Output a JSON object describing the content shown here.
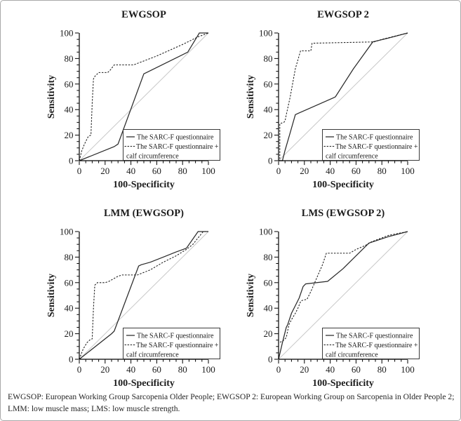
{
  "figure": {
    "caption": "EWGSOP: European Working Group Sarcopenia Older People; EWGSOP 2: European Working Group on Sarcopenia in Older People 2; LMM: low muscle mass; LMS: low muscle strength."
  },
  "legend": {
    "solid_label": "The SARC-F questionnaire",
    "dashed_label_line1": "The SARC-F questionnaire +",
    "dashed_label_line2": "calf circumference"
  },
  "colors": {
    "solid_curve": "#2a2a2a",
    "dashed_curve": "#1c1c1c",
    "reference_line": "#c8c8c8",
    "axis": "#000000",
    "text": "#1b1b1b",
    "legend_border": "#3a3a3a",
    "frame_border": "#a9a9a9",
    "background": "#ffffff"
  },
  "chart_data": [
    {
      "type": "line",
      "title": "EWGSOP",
      "xlabel": "100-Specificity",
      "ylabel": "Sensitivity",
      "xlim": [
        0,
        100
      ],
      "ylim": [
        0,
        100
      ],
      "xticks": [
        0,
        20,
        40,
        60,
        80,
        100
      ],
      "yticks": [
        0,
        20,
        40,
        60,
        80,
        100
      ],
      "minor_tick_step": 5,
      "reference_line": "diagonal",
      "legend_position": "lower-right",
      "series": [
        {
          "name": "The SARC-F questionnaire",
          "style": "solid",
          "points": [
            [
              0,
              0
            ],
            [
              27,
              11
            ],
            [
              30,
              13
            ],
            [
              50,
              68
            ],
            [
              52,
              69
            ],
            [
              84,
              85
            ],
            [
              93,
              100
            ],
            [
              100,
              100
            ]
          ]
        },
        {
          "name": "The SARC-F questionnaire + calf circumference",
          "style": "dashed",
          "points": [
            [
              0,
              0
            ],
            [
              2,
              8
            ],
            [
              4,
              13
            ],
            [
              6,
              17
            ],
            [
              7,
              19
            ],
            [
              9,
              20
            ],
            [
              10,
              45
            ],
            [
              11,
              64
            ],
            [
              12,
              66
            ],
            [
              14,
              68
            ],
            [
              15,
              69
            ],
            [
              22,
              69
            ],
            [
              24,
              71
            ],
            [
              27,
              75
            ],
            [
              42,
              75
            ],
            [
              60,
              82
            ],
            [
              80,
              91
            ],
            [
              92,
              97
            ],
            [
              100,
              100
            ]
          ]
        }
      ]
    },
    {
      "type": "line",
      "title": "EWGSOP 2",
      "xlabel": "100-Specificity",
      "ylabel": "Sensitivity",
      "xlim": [
        0,
        100
      ],
      "ylim": [
        0,
        100
      ],
      "xticks": [
        0,
        20,
        40,
        60,
        80,
        100
      ],
      "yticks": [
        0,
        20,
        40,
        60,
        80,
        100
      ],
      "minor_tick_step": 5,
      "reference_line": "diagonal",
      "legend_position": "lower-right",
      "series": [
        {
          "name": "The SARC-F questionnaire",
          "style": "solid",
          "points": [
            [
              0,
              0
            ],
            [
              3,
              0
            ],
            [
              5,
              8
            ],
            [
              9,
              22
            ],
            [
              13,
              36
            ],
            [
              15,
              37
            ],
            [
              42,
              49
            ],
            [
              44,
              50
            ],
            [
              58,
              72
            ],
            [
              73,
              93
            ],
            [
              85,
              96
            ],
            [
              100,
              100
            ]
          ]
        },
        {
          "name": "The SARC-F questionnaire + calf circumference",
          "style": "dashed",
          "points": [
            [
              0,
              0
            ],
            [
              1,
              0
            ],
            [
              1,
              29
            ],
            [
              4,
              30
            ],
            [
              5,
              31
            ],
            [
              6,
              36
            ],
            [
              9,
              50
            ],
            [
              13,
              72
            ],
            [
              17,
              86
            ],
            [
              25,
              86
            ],
            [
              26,
              92
            ],
            [
              74,
              93
            ],
            [
              80,
              95
            ],
            [
              100,
              100
            ]
          ]
        }
      ]
    },
    {
      "type": "line",
      "title": "LMM (EWGSOP)",
      "xlabel": "100-Specificity",
      "ylabel": "Sensitivity",
      "xlim": [
        0,
        100
      ],
      "ylim": [
        0,
        100
      ],
      "xticks": [
        0,
        20,
        40,
        60,
        80,
        100
      ],
      "yticks": [
        0,
        20,
        40,
        60,
        80,
        100
      ],
      "minor_tick_step": 5,
      "reference_line": "diagonal",
      "legend_position": "lower-right",
      "series": [
        {
          "name": "The SARC-F questionnaire",
          "style": "solid",
          "points": [
            [
              0,
              0
            ],
            [
              25,
              20
            ],
            [
              27,
              22
            ],
            [
              46,
              73
            ],
            [
              48,
              74
            ],
            [
              55,
              76
            ],
            [
              65,
              80
            ],
            [
              75,
              84
            ],
            [
              83,
              87
            ],
            [
              92,
              100
            ],
            [
              100,
              100
            ]
          ]
        },
        {
          "name": "The SARC-F questionnaire + calf circumference",
          "style": "dashed",
          "points": [
            [
              0,
              0
            ],
            [
              3,
              8
            ],
            [
              6,
              13
            ],
            [
              8,
              15
            ],
            [
              10,
              16
            ],
            [
              11,
              40
            ],
            [
              12,
              58
            ],
            [
              14,
              60
            ],
            [
              20,
              60
            ],
            [
              23,
              61
            ],
            [
              30,
              65
            ],
            [
              33,
              66
            ],
            [
              45,
              66
            ],
            [
              55,
              70
            ],
            [
              65,
              76
            ],
            [
              75,
              81
            ],
            [
              83,
              86
            ],
            [
              88,
              90
            ],
            [
              96,
              100
            ],
            [
              100,
              100
            ]
          ]
        }
      ]
    },
    {
      "type": "line",
      "title": "LMS (EWGSOP 2)",
      "xlabel": "100-Specificity",
      "ylabel": "Sensitivity",
      "xlim": [
        0,
        100
      ],
      "ylim": [
        0,
        100
      ],
      "xticks": [
        0,
        20,
        40,
        60,
        80,
        100
      ],
      "yticks": [
        0,
        20,
        40,
        60,
        80,
        100
      ],
      "minor_tick_step": 5,
      "reference_line": "diagonal",
      "legend_position": "lower-right",
      "series": [
        {
          "name": "The SARC-F questionnaire",
          "style": "solid",
          "points": [
            [
              0,
              0
            ],
            [
              3,
              13
            ],
            [
              6,
              25
            ],
            [
              7,
              27
            ],
            [
              10,
              36
            ],
            [
              13,
              42
            ],
            [
              16,
              48
            ],
            [
              19,
              57
            ],
            [
              21,
              59
            ],
            [
              38,
              61
            ],
            [
              50,
              71
            ],
            [
              60,
              81
            ],
            [
              67,
              88
            ],
            [
              70,
              91
            ],
            [
              85,
              96
            ],
            [
              100,
              100
            ]
          ]
        },
        {
          "name": "The SARC-F questionnaire + calf circumference",
          "style": "dashed",
          "points": [
            [
              0,
              0
            ],
            [
              0,
              13
            ],
            [
              3,
              14
            ],
            [
              5,
              16
            ],
            [
              6,
              17
            ],
            [
              8,
              27
            ],
            [
              10,
              31
            ],
            [
              13,
              36
            ],
            [
              15,
              40
            ],
            [
              17,
              45
            ],
            [
              18,
              46
            ],
            [
              22,
              47
            ],
            [
              25,
              53
            ],
            [
              28,
              60
            ],
            [
              31,
              67
            ],
            [
              34,
              74
            ],
            [
              37,
              83
            ],
            [
              55,
              83
            ],
            [
              60,
              86
            ],
            [
              67,
              89
            ],
            [
              72,
              92
            ],
            [
              85,
              97
            ],
            [
              100,
              100
            ]
          ]
        }
      ]
    }
  ]
}
